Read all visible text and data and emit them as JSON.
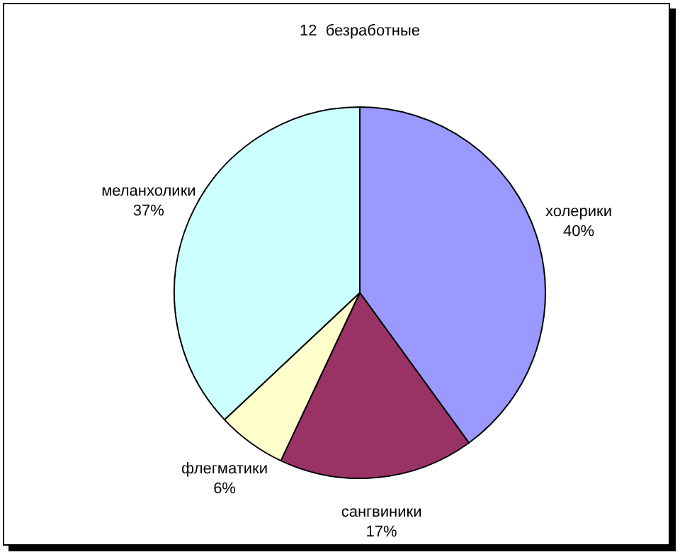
{
  "chart_data": {
    "type": "pie",
    "title": "12  безработные",
    "categories": [
      "холерики",
      "сангвиники",
      "флегматики",
      "меланхолики"
    ],
    "values": [
      40,
      17,
      6,
      37
    ],
    "value_labels": [
      "40%",
      "17%",
      "6%",
      "37%"
    ],
    "colors": [
      "#9999ff",
      "#993366",
      "#ffffcc",
      "#ccffff"
    ],
    "legend": false
  }
}
